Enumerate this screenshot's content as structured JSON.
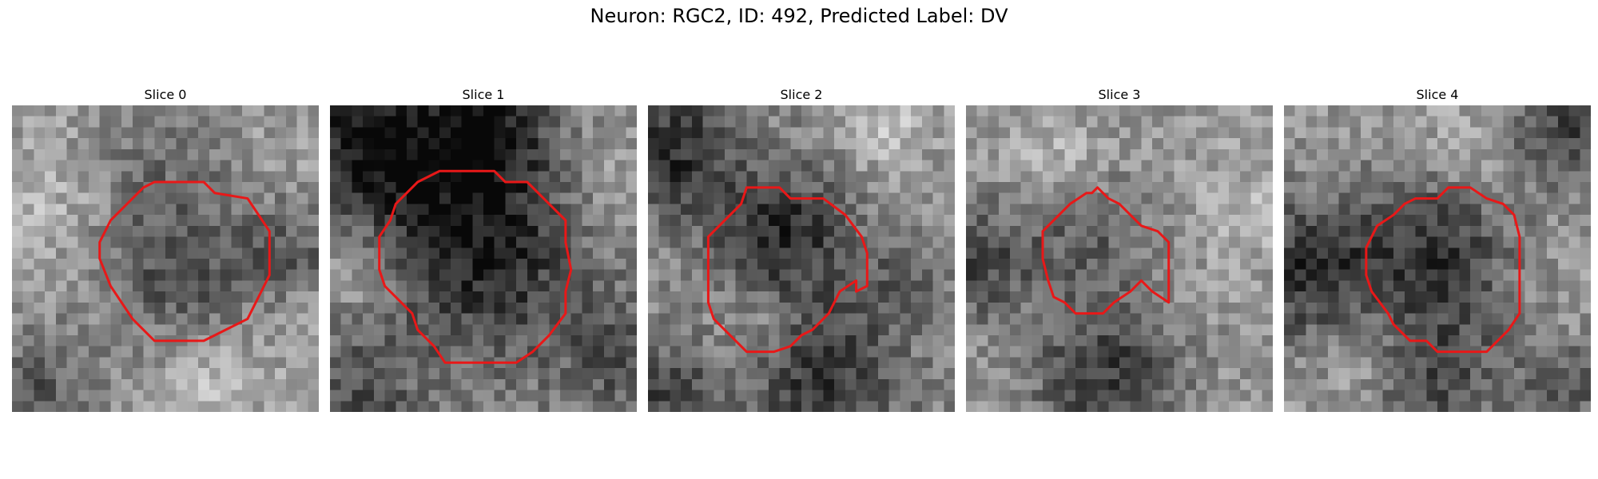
{
  "figure": {
    "title": "Neuron: RGC2, ID: 492, Predicted Label: DV"
  },
  "colors": {
    "contour": "#e81818",
    "background": "#ffffff"
  },
  "panels": [
    {
      "title": "Slice 0"
    },
    {
      "title": "Slice 1"
    },
    {
      "title": "Slice 2"
    },
    {
      "title": "Slice 3"
    },
    {
      "title": "Slice 4"
    }
  ]
}
